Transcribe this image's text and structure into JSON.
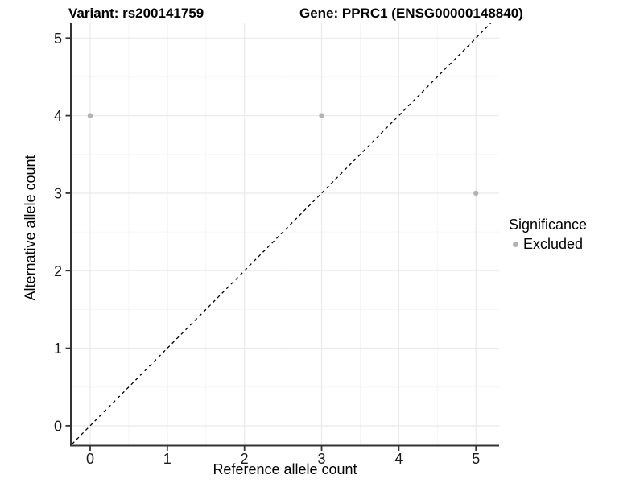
{
  "chart_data": {
    "type": "scatter",
    "title_left": "Variant: rs200141759",
    "title_right": "Gene: PPRC1 (ENSG00000148840)",
    "xlabel": "Reference allele count",
    "ylabel": "Alternative allele count",
    "x_ticks": [
      0,
      1,
      2,
      3,
      4,
      5
    ],
    "y_ticks": [
      0,
      1,
      2,
      3,
      4,
      5
    ],
    "xlim": [
      -0.25,
      5.3
    ],
    "ylim": [
      -0.25,
      5.2
    ],
    "grid": {
      "major": true,
      "minor": true
    },
    "legend": {
      "title": "Significance",
      "position": "right"
    },
    "series": [
      {
        "name": "Excluded",
        "color": "#b3b3b3",
        "points": [
          [
            0,
            4
          ],
          [
            3,
            4
          ],
          [
            5,
            3
          ]
        ]
      }
    ],
    "reference_line": {
      "kind": "identity",
      "slope": 1,
      "intercept": 0,
      "style": "dashed",
      "color": "#000000"
    }
  },
  "colors": {
    "background": "#ffffff",
    "grid_major": "#ebebeb",
    "grid_minor": "#f5f5f5",
    "axis_line": "#333333",
    "excluded_point": "#b3b3b3",
    "text": "#000000"
  }
}
